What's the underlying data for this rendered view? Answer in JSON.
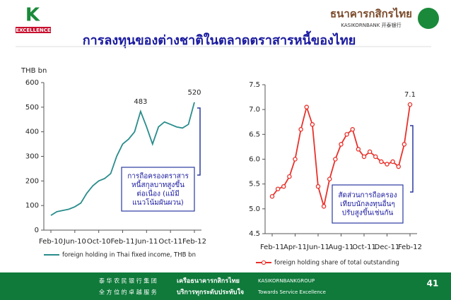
{
  "header": {
    "logo_letter": "K",
    "logo_caption": "EXCELLENCE",
    "title": "การลงทุนของต่างชาติในตลาดตราสารหนี้ของไทย",
    "bank_name_thai": "ธนาคารกสิกรไทย",
    "bank_name_en": "KASIKORNBANK 开泰银行"
  },
  "chart_data": [
    {
      "type": "line",
      "y_axis_label": "THB bn",
      "categories": [
        "Feb-10",
        null,
        null,
        null,
        "Jun-10",
        null,
        null,
        null,
        "Oct-10",
        null,
        null,
        null,
        "Feb-11",
        null,
        null,
        null,
        "Jun-11",
        null,
        null,
        null,
        "Oct-11",
        null,
        null,
        null,
        "Feb-12"
      ],
      "series": [
        {
          "name": "foreign holding in Thai fixed income, THB bn",
          "color": "#2a8c8c",
          "values": [
            60,
            75,
            80,
            85,
            95,
            110,
            150,
            180,
            200,
            210,
            230,
            300,
            350,
            370,
            400,
            483,
            420,
            350,
            420,
            440,
            430,
            420,
            415,
            430,
            520
          ],
          "value_labels": [
            null,
            null,
            null,
            null,
            null,
            null,
            null,
            null,
            null,
            null,
            null,
            null,
            null,
            null,
            null,
            "483",
            null,
            null,
            null,
            null,
            null,
            null,
            null,
            null,
            "520"
          ]
        }
      ],
      "ylim": [
        0,
        600
      ],
      "yticks": [
        0,
        100,
        200,
        300,
        400,
        500,
        600
      ],
      "annotation": [
        "การถือครองตราสาร",
        "หนี้สกุลบาทสูงขึ้น",
        "ต่อเนื่อง (แม้มี",
        "แนวโน้มผันผวน)"
      ]
    },
    {
      "type": "line",
      "marker": "circle",
      "categories": [
        "Feb-11",
        null,
        null,
        null,
        "Apr-11",
        null,
        null,
        null,
        "Jun-11",
        null,
        null,
        null,
        "Aug-11",
        null,
        null,
        null,
        "Oct-11",
        null,
        null,
        null,
        "Dec-11",
        null,
        null,
        null,
        "Feb-12"
      ],
      "series": [
        {
          "name": "foreign holding share of total outstanding",
          "color": "#e8312a",
          "values": [
            5.25,
            5.4,
            5.45,
            5.65,
            6.0,
            6.6,
            7.05,
            6.7,
            5.45,
            5.05,
            5.6,
            6.0,
            6.3,
            6.5,
            6.6,
            6.2,
            6.05,
            6.15,
            6.05,
            5.95,
            5.9,
            5.95,
            5.85,
            6.3,
            7.1
          ],
          "value_labels": [
            null,
            null,
            null,
            null,
            null,
            null,
            null,
            null,
            null,
            null,
            null,
            null,
            null,
            null,
            null,
            null,
            null,
            null,
            null,
            null,
            null,
            null,
            null,
            null,
            "7.1"
          ]
        }
      ],
      "ylim": [
        4.5,
        7.5
      ],
      "yticks": [
        4.5,
        {
          "value": 5,
          "label": "5.0"
        },
        5.5,
        {
          "value": 6,
          "label": "6.0"
        },
        6.5,
        {
          "value": 7,
          "label": "7.0"
        },
        7.5
      ],
      "annotation": [
        "สัดส่วนการถือครอง",
        "เทียบนักลงทุนอื่นๆ",
        "ปรับสูงขึ้นเช่นกัน"
      ]
    }
  ],
  "footer": {
    "line1_cn": "泰 华 农 民 银 行 集 团",
    "line1_th": "เครือธนาคารกสิกรไทย",
    "line1_en": "KASIKORNBANKGROUP",
    "line2_cn": "全 方 位 的 卓 越 服 务",
    "line2_th": "บริการทุกระดับประทับใจ",
    "line2_en": "Towards Service Excellence",
    "page": "41"
  }
}
